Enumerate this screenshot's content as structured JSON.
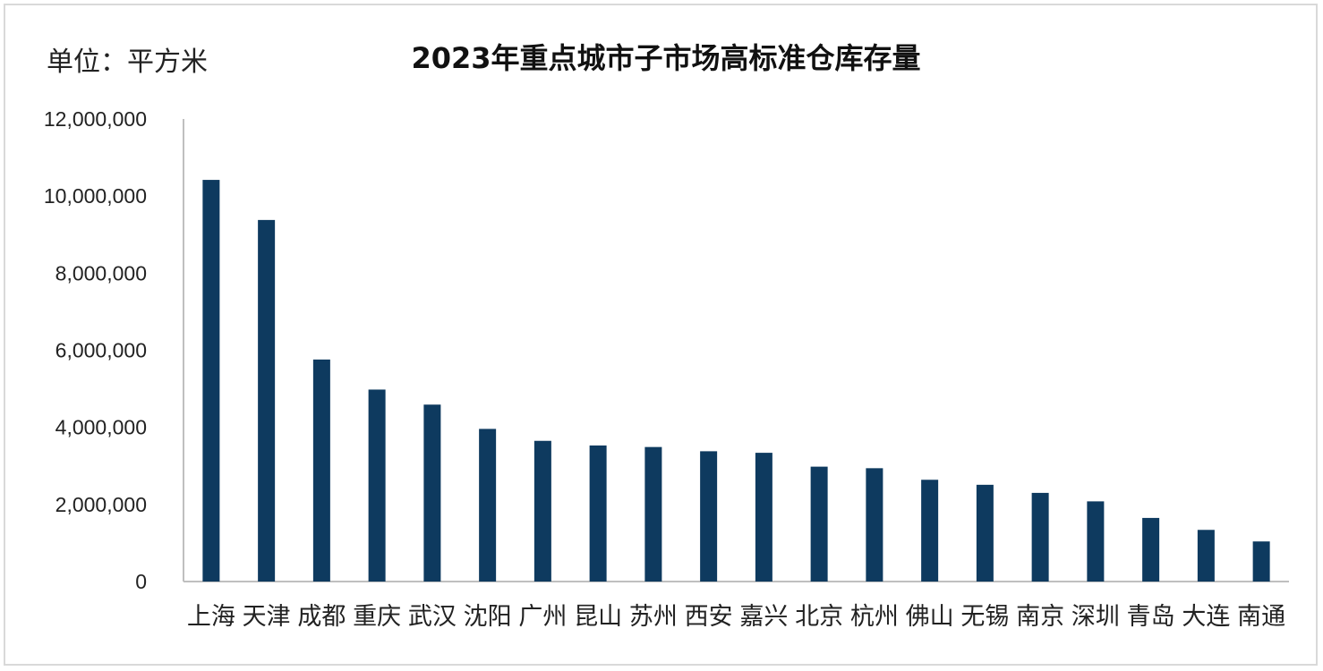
{
  "unit_label": "单位：平方米",
  "chart_data": {
    "type": "bar",
    "title": "2023年重点城市子市场高标准仓库存量",
    "xlabel": "",
    "ylabel": "",
    "ylim": [
      0,
      12000000
    ],
    "yticks": [
      0,
      2000000,
      4000000,
      6000000,
      8000000,
      10000000,
      12000000
    ],
    "ytick_labels": [
      "0",
      "2,000,000",
      "4,000,000",
      "6,000,000",
      "8,000,000",
      "10,000,000",
      "12,000,000"
    ],
    "grid": false,
    "bar_color": "#0e3a5f",
    "categories": [
      "上海",
      "天津",
      "成都",
      "重庆",
      "武汉",
      "沈阳",
      "广州",
      "昆山",
      "苏州",
      "西安",
      "嘉兴",
      "北京",
      "杭州",
      "佛山",
      "无锡",
      "南京",
      "深圳",
      "青岛",
      "大连",
      "南通"
    ],
    "values": [
      10420000,
      9380000,
      5760000,
      4980000,
      4590000,
      3960000,
      3650000,
      3530000,
      3490000,
      3380000,
      3340000,
      2980000,
      2940000,
      2640000,
      2510000,
      2300000,
      2080000,
      1650000,
      1340000,
      1040000
    ]
  }
}
